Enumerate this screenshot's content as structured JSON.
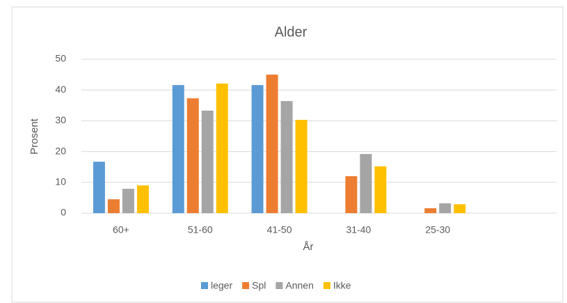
{
  "chart_data": {
    "type": "bar",
    "title": "Alder",
    "x_label": "År",
    "y_label": "Prosent",
    "categories": [
      "60+",
      "51-60",
      "41-50",
      "31-40",
      "25-30",
      null
    ],
    "series": [
      {
        "name": "leger",
        "color": "#5b9bd5",
        "values": [
          16.7,
          41.6,
          41.6,
          0,
          0,
          null
        ]
      },
      {
        "name": "Spl",
        "color": "#ed7d31",
        "values": [
          4.5,
          37.3,
          45,
          12,
          1.6,
          null
        ]
      },
      {
        "name": "Annen",
        "color": "#a5a5a5",
        "values": [
          7.9,
          33.3,
          36.4,
          19.2,
          3.2,
          null
        ]
      },
      {
        "name": "Ikke",
        "color": "#ffc000",
        "values": [
          9,
          42.1,
          30.3,
          15.2,
          2.9,
          null
        ]
      }
    ],
    "ylim": [
      0,
      50
    ],
    "yticks": [
      0,
      10,
      20,
      30,
      40,
      50
    ],
    "grid": true,
    "legend": "bottom"
  }
}
